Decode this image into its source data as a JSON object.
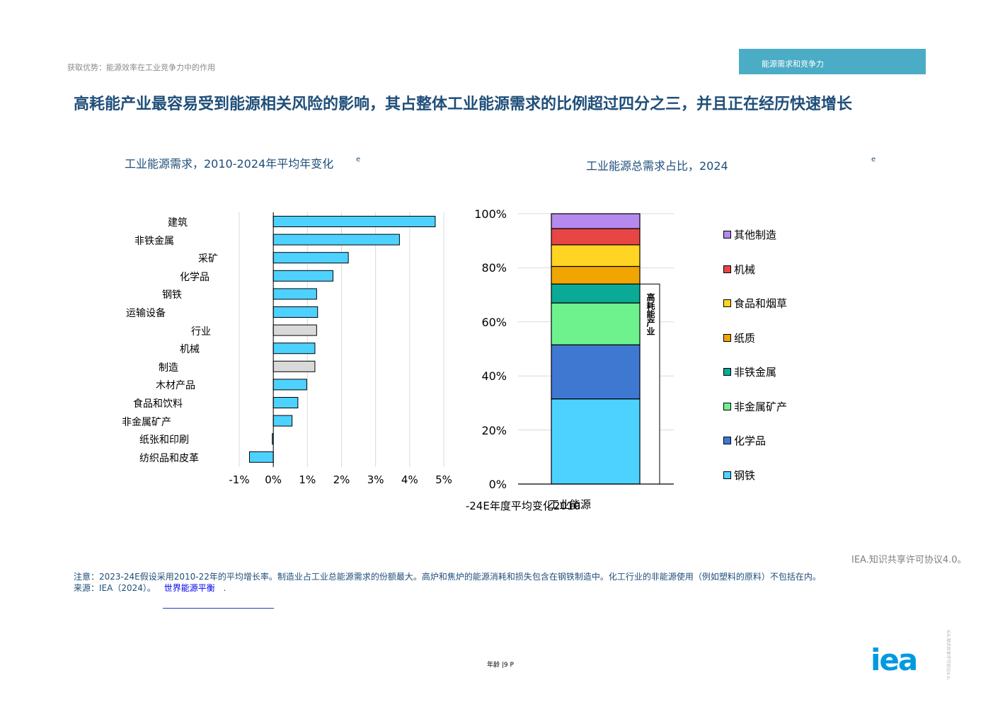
{
  "header": {
    "breadcrumb": "获取优势：能源效率在工业竞争力中的作用",
    "section_tab": "能源需求和竞争力",
    "headline": "高耗能产业最容易受到能源相关风险的影响，其占整体工业能源需求的比例超过四分之三，并且正在经历快速增长"
  },
  "chart_data": [
    {
      "type": "bar",
      "orientation": "horizontal",
      "title": "工业能源需求，2010-2024年平均年变化",
      "title_sup": "e",
      "xlabel": "-24E年度平均变化2010",
      "categories": [
        "建筑",
        "非铁金属",
        "采矿",
        "化学品",
        "钢铁",
        "运输设备",
        "行业",
        "机械",
        "制造",
        "木材产品",
        "食品和饮料",
        "非金属矿产",
        "纸张和印刷",
        "纺织品和皮革"
      ],
      "values": [
        4.75,
        3.7,
        2.2,
        1.75,
        1.27,
        1.3,
        1.27,
        1.22,
        1.22,
        0.98,
        0.72,
        0.55,
        -0.03,
        -0.7
      ],
      "highlighted": [
        "行业",
        "制造"
      ],
      "xlim": [
        -1,
        5
      ],
      "xticks": [
        -1,
        0,
        1,
        2,
        3,
        4,
        5
      ],
      "xtick_labels": [
        "-1%",
        "0%",
        "1%",
        "2%",
        "3%",
        "4%",
        "5%"
      ],
      "grid": "vertical",
      "colors": {
        "bar": "#4dd2ff",
        "highlight": "#d9d9d9"
      }
    },
    {
      "type": "bar",
      "stacked": true,
      "title": "工业能源总需求占比，2024",
      "title_sup": "e",
      "categories": [
        "工业能源"
      ],
      "ylim": [
        0,
        100
      ],
      "yticks": [
        0,
        20,
        40,
        60,
        80,
        100
      ],
      "ytick_labels": [
        "0%",
        "20%",
        "40%",
        "60%",
        "80%",
        "100%"
      ],
      "series": [
        {
          "name": "钢铁",
          "value": 31.5,
          "color": "#4dd2ff"
        },
        {
          "name": "化学品",
          "value": 20.0,
          "color": "#3f78d1"
        },
        {
          "name": "非金属矿产",
          "value": 15.5,
          "color": "#6ef28e"
        },
        {
          "name": "非铁金属",
          "value": 7.0,
          "color": "#0aaa96"
        },
        {
          "name": "纸质",
          "value": 6.5,
          "color": "#f0a500"
        },
        {
          "name": "食品和烟草",
          "value": 8.0,
          "color": "#ffd422"
        },
        {
          "name": "机械",
          "value": 6.0,
          "color": "#e84545"
        },
        {
          "name": "其他制造",
          "value": 5.5,
          "color": "#b58aec"
        }
      ],
      "bracket": {
        "label": "高耗能产业",
        "from": 0,
        "to": 74
      }
    }
  ],
  "footer": {
    "license": "IEA.知识共享许可协议4.0。",
    "note": "注意：2023-24E假设采用2010-22年的平均增长率。制造业占工业总能源需求的份额最大。高炉和焦炉的能源消耗和损失包含在钢铁制造中。化工行业的非能源使用（例如塑料的原料）不包括在内。",
    "source_prefix": "来源：IEA（2024）。",
    "source_link": "世界能源平衡",
    "source_suffix": ".",
    "page_number": "年龄 |9 P",
    "side_text": "IEA.知识共享许可协议4.0。",
    "logo": "iea"
  }
}
